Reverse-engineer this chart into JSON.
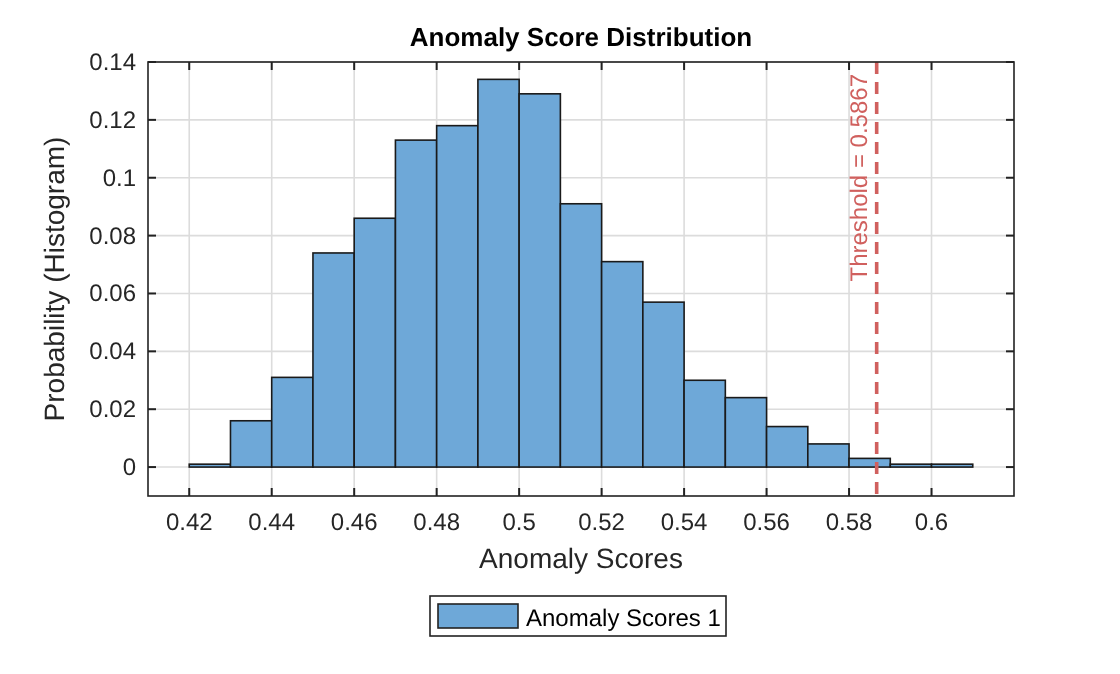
{
  "chart_data": {
    "type": "histogram",
    "title": "Anomaly Score Distribution",
    "xlabel": "Anomaly Scores",
    "ylabel": "Probability (Histogram)",
    "bins": [
      0.42,
      0.43,
      0.44,
      0.45,
      0.46,
      0.47,
      0.48,
      0.49,
      0.5,
      0.51,
      0.52,
      0.53,
      0.54,
      0.55,
      0.56,
      0.57,
      0.58,
      0.59,
      0.6,
      0.61
    ],
    "series": [
      {
        "name": "Anomaly Scores 1",
        "color": "#6ea8d8",
        "values": [
          0.001,
          0.016,
          0.031,
          0.074,
          0.086,
          0.113,
          0.118,
          0.134,
          0.129,
          0.091,
          0.071,
          0.057,
          0.03,
          0.024,
          0.014,
          0.008,
          0.003,
          0.001,
          0.001
        ]
      }
    ],
    "xlim": [
      0.41,
      0.62
    ],
    "xticks": [
      0.42,
      0.44,
      0.46,
      0.48,
      0.5,
      0.52,
      0.54,
      0.56,
      0.58,
      0.6
    ],
    "ylim": [
      -0.01,
      0.14
    ],
    "yticks": [
      0,
      0.02,
      0.04,
      0.06,
      0.08,
      0.1,
      0.12,
      0.14
    ],
    "grid": true,
    "legend": "bottom",
    "ref_lines": [
      {
        "axis": "x",
        "value": 0.5867,
        "label": "Threshold = 0.5867",
        "color": "#d0605e",
        "line_style": "dashed"
      }
    ]
  }
}
